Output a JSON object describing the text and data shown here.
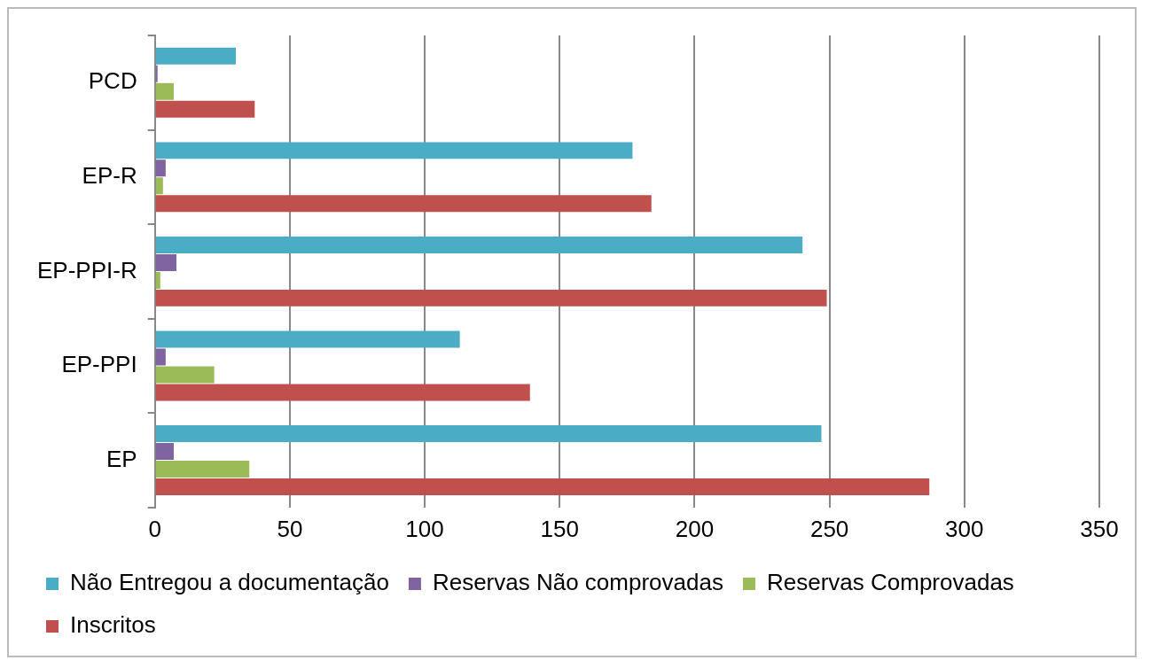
{
  "chart_data": {
    "type": "bar",
    "orientation": "horizontal",
    "categories": [
      "PCD",
      "EP-R",
      "EP-PPI-R",
      "EP-PPI",
      "EP"
    ],
    "series": [
      {
        "name": "Não Entregou a documentação",
        "color": "#4bacc6",
        "values": [
          30,
          177,
          240,
          113,
          247
        ]
      },
      {
        "name": "Reservas Não comprovadas",
        "color": "#8064a2",
        "values": [
          1,
          4,
          8,
          4,
          7
        ]
      },
      {
        "name": "Reservas Comprovadas",
        "color": "#9bbb59",
        "values": [
          7,
          3,
          2,
          22,
          35
        ]
      },
      {
        "name": "Inscritos",
        "color": "#c0504d",
        "values": [
          37,
          184,
          249,
          139,
          287
        ]
      }
    ],
    "xlim": [
      0,
      350
    ],
    "xticks": [
      0,
      50,
      100,
      150,
      200,
      250,
      300,
      350
    ],
    "grid": "x",
    "legend": "bottom"
  }
}
